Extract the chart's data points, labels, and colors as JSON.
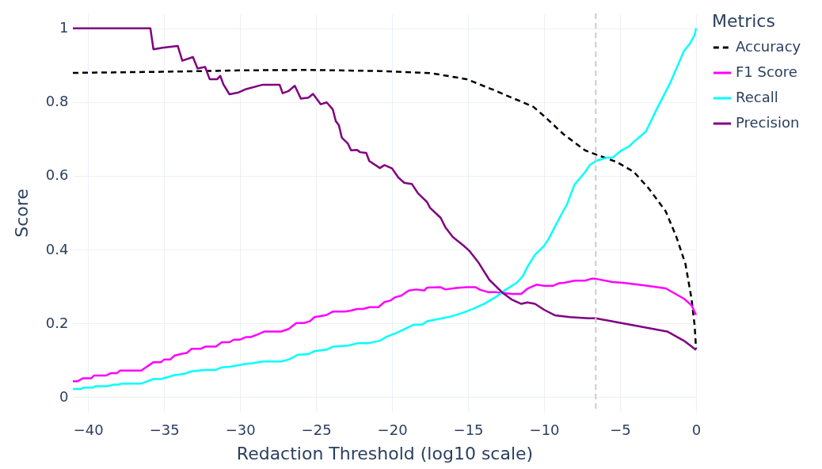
{
  "chart_data": {
    "type": "line",
    "xlabel": "Redaction Threshold (log10 scale)",
    "ylabel": "Score",
    "legend_title": "Metrics",
    "legend": "top right",
    "grid": true,
    "xlim": [
      -41,
      0
    ],
    "ylim": [
      -0.04,
      1.04
    ],
    "xticks": [
      {
        "value": -40,
        "label": "−40"
      },
      {
        "value": -35,
        "label": "−35"
      },
      {
        "value": -30,
        "label": "−30"
      },
      {
        "value": -25,
        "label": "−25"
      },
      {
        "value": -20,
        "label": "−20"
      },
      {
        "value": -15,
        "label": "−15"
      },
      {
        "value": -10,
        "label": "−10"
      },
      {
        "value": -5,
        "label": "−5"
      },
      0
    ],
    "yticks": [
      0,
      0.2,
      0.4,
      0.6,
      0.8,
      1
    ],
    "ref_lines": [
      {
        "axis": "x",
        "value": -6.6,
        "color": "#cccccc",
        "line_style": "dashed"
      }
    ],
    "series": [
      {
        "name": "Accuracy",
        "color": "#000000",
        "line_style": "dashed",
        "x": [
          -41,
          -35.1,
          -29.6,
          -25.5,
          -20.8,
          -17.4,
          -15.1,
          -13.4,
          -10.7,
          -10.0,
          -8.7,
          -7.3,
          -6.6,
          -5.2,
          -4.1,
          -3.1,
          -2.0,
          -1.3,
          -0.7,
          -0.3,
          -0.1,
          0
        ],
        "values": [
          0.879,
          0.882,
          0.886,
          0.887,
          0.884,
          0.878,
          0.862,
          0.834,
          0.787,
          0.762,
          0.712,
          0.669,
          0.658,
          0.637,
          0.611,
          0.565,
          0.504,
          0.435,
          0.361,
          0.267,
          0.196,
          0.131
        ]
      },
      {
        "name": "F1 Score",
        "color": "#ff00ff",
        "line_style": "solid",
        "x": [
          -41,
          -40.7,
          -40.35,
          -39.8,
          -39.6,
          -38.8,
          -38.5,
          -38.1,
          -37.9,
          -36.5,
          -35.7,
          -35.2,
          -35.0,
          -34.6,
          -34.3,
          -33.8,
          -33.5,
          -33.2,
          -32.6,
          -32.3,
          -31.6,
          -31.2,
          -30.7,
          -30.4,
          -30.0,
          -29.6,
          -29.3,
          -28.9,
          -28.4,
          -27.3,
          -26.8,
          -26.3,
          -25.8,
          -25.4,
          -25.1,
          -24.7,
          -24.3,
          -23.9,
          -23.1,
          -22.7,
          -22.3,
          -21.9,
          -21.5,
          -20.9,
          -20.5,
          -20.1,
          -19.8,
          -19.4,
          -18.9,
          -18.4,
          -17.9,
          -17.7,
          -16.8,
          -16.5,
          -15.8,
          -15.1,
          -14.5,
          -14.2,
          -13.7,
          -13.2,
          -12.7,
          -12.1,
          -11.5,
          -11.1,
          -10.5,
          -10.0,
          -9.4,
          -9.0,
          -8.7,
          -8.0,
          -7.3,
          -6.9,
          -6.6,
          -5.5,
          -4.8,
          -3.4,
          -2.0,
          -0.8,
          -0.3,
          0
        ],
        "values": [
          0.043,
          0.043,
          0.051,
          0.051,
          0.059,
          0.059,
          0.065,
          0.065,
          0.072,
          0.072,
          0.095,
          0.095,
          0.102,
          0.102,
          0.113,
          0.118,
          0.12,
          0.131,
          0.131,
          0.137,
          0.137,
          0.149,
          0.149,
          0.156,
          0.156,
          0.163,
          0.163,
          0.169,
          0.178,
          0.178,
          0.185,
          0.201,
          0.201,
          0.206,
          0.217,
          0.22,
          0.223,
          0.232,
          0.232,
          0.235,
          0.239,
          0.239,
          0.244,
          0.244,
          0.258,
          0.262,
          0.271,
          0.275,
          0.289,
          0.292,
          0.289,
          0.297,
          0.298,
          0.292,
          0.296,
          0.298,
          0.298,
          0.291,
          0.285,
          0.285,
          0.282,
          0.28,
          0.28,
          0.294,
          0.305,
          0.302,
          0.302,
          0.309,
          0.31,
          0.316,
          0.316,
          0.321,
          0.321,
          0.312,
          0.31,
          0.303,
          0.295,
          0.267,
          0.249,
          0.223
        ]
      },
      {
        "name": "Recall",
        "color": "#00ffff",
        "line_style": "solid",
        "x": [
          -41,
          -40.5,
          -40.3,
          -39.7,
          -39.5,
          -38.7,
          -38.3,
          -38.0,
          -37.8,
          -36.5,
          -35.7,
          -35.2,
          -34.8,
          -34.3,
          -33.7,
          -33.2,
          -32.3,
          -31.6,
          -31.2,
          -30.6,
          -29.7,
          -29.2,
          -28.5,
          -27.3,
          -26.8,
          -26.2,
          -25.5,
          -25.1,
          -24.3,
          -23.9,
          -22.9,
          -22.3,
          -21.6,
          -20.8,
          -20.4,
          -19.8,
          -19.1,
          -18.6,
          -18.0,
          -17.7,
          -16.7,
          -16.1,
          -15.4,
          -14.7,
          -13.9,
          -13.2,
          -12.5,
          -11.8,
          -11.4,
          -11.1,
          -10.6,
          -10.0,
          -9.7,
          -9.3,
          -8.8,
          -8.5,
          -8.0,
          -7.3,
          -7.0,
          -6.6,
          -5.9,
          -5.5,
          -4.9,
          -4.4,
          -4.1,
          -3.3,
          -2.6,
          -1.7,
          -0.8,
          -0.4,
          -0.1,
          0
        ],
        "values": [
          0.022,
          0.022,
          0.026,
          0.026,
          0.03,
          0.03,
          0.034,
          0.034,
          0.037,
          0.037,
          0.049,
          0.049,
          0.054,
          0.06,
          0.063,
          0.07,
          0.074,
          0.074,
          0.081,
          0.083,
          0.09,
          0.092,
          0.097,
          0.097,
          0.102,
          0.115,
          0.117,
          0.125,
          0.129,
          0.137,
          0.14,
          0.146,
          0.146,
          0.153,
          0.163,
          0.173,
          0.186,
          0.196,
          0.197,
          0.206,
          0.214,
          0.219,
          0.228,
          0.239,
          0.254,
          0.271,
          0.292,
          0.31,
          0.328,
          0.353,
          0.386,
          0.41,
          0.429,
          0.461,
          0.5,
          0.522,
          0.576,
          0.61,
          0.629,
          0.64,
          0.649,
          0.649,
          0.669,
          0.68,
          0.692,
          0.72,
          0.78,
          0.852,
          0.938,
          0.959,
          0.981,
          1.0
        ]
      },
      {
        "name": "Precision",
        "color": "#800080",
        "line_style": "solid",
        "x": [
          -41,
          -35.9,
          -35.7,
          -35.1,
          -34.1,
          -33.8,
          -33.1,
          -32.8,
          -32.3,
          -32.0,
          -31.5,
          -31.3,
          -31.1,
          -30.7,
          -30.1,
          -29.6,
          -28.5,
          -27.4,
          -27.2,
          -26.8,
          -26.4,
          -26.0,
          -25.5,
          -25.2,
          -24.7,
          -24.3,
          -23.9,
          -23.7,
          -23.5,
          -23.3,
          -22.9,
          -22.7,
          -22.3,
          -22.1,
          -21.7,
          -21.5,
          -20.8,
          -20.5,
          -20.0,
          -19.6,
          -19.2,
          -18.7,
          -18.3,
          -17.7,
          -17.5,
          -16.8,
          -16.5,
          -16.0,
          -15.3,
          -14.9,
          -14.3,
          -13.6,
          -12.7,
          -12.1,
          -11.5,
          -11.1,
          -10.6,
          -10.0,
          -9.3,
          -8.3,
          -7.1,
          -6.6,
          -5.2,
          -4.0,
          -1.9,
          -0.8,
          0
        ],
        "values": [
          1.0,
          1.0,
          0.943,
          0.947,
          0.952,
          0.912,
          0.922,
          0.891,
          0.895,
          0.862,
          0.862,
          0.871,
          0.848,
          0.821,
          0.826,
          0.835,
          0.847,
          0.847,
          0.824,
          0.83,
          0.844,
          0.809,
          0.812,
          0.822,
          0.794,
          0.799,
          0.78,
          0.748,
          0.737,
          0.703,
          0.687,
          0.669,
          0.67,
          0.664,
          0.662,
          0.64,
          0.621,
          0.629,
          0.62,
          0.596,
          0.581,
          0.578,
          0.553,
          0.529,
          0.513,
          0.486,
          0.461,
          0.434,
          0.411,
          0.396,
          0.364,
          0.318,
          0.282,
          0.264,
          0.253,
          0.257,
          0.253,
          0.237,
          0.222,
          0.217,
          0.214,
          0.214,
          0.203,
          0.194,
          0.178,
          0.153,
          0.128
        ]
      }
    ]
  }
}
